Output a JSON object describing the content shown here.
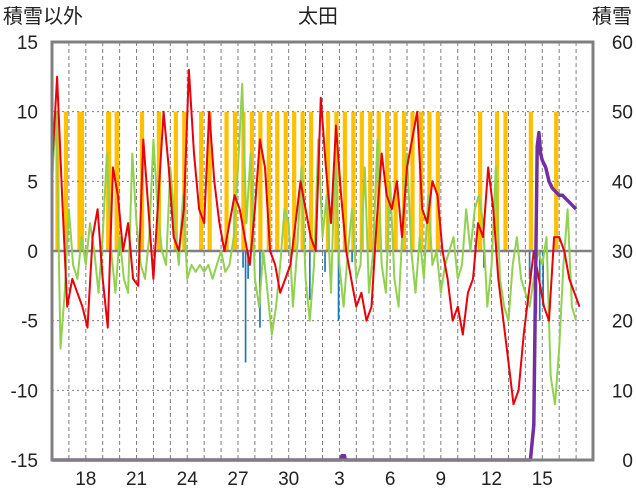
{
  "chart_data": {
    "type": "line",
    "title": "太田",
    "y_left_label": "積雪以外",
    "y_right_label": "積雪",
    "y_left_range": [
      -15,
      15
    ],
    "y_left_ticks": [
      15,
      10,
      5,
      0,
      -5,
      -10,
      -15
    ],
    "y_right_range": [
      0,
      60
    ],
    "y_right_ticks": [
      60,
      50,
      40,
      30,
      20,
      10,
      0
    ],
    "x_range": [
      0,
      32
    ],
    "x_ticks": [
      {
        "x": 2,
        "label": "18"
      },
      {
        "x": 5,
        "label": "21"
      },
      {
        "x": 8,
        "label": "24"
      },
      {
        "x": 11,
        "label": "27"
      },
      {
        "x": 14,
        "label": "30"
      },
      {
        "x": 17,
        "label": "3"
      },
      {
        "x": 20,
        "label": "6"
      },
      {
        "x": 23,
        "label": "9"
      },
      {
        "x": 26,
        "label": "12"
      },
      {
        "x": 29,
        "label": "15"
      }
    ],
    "grid": true,
    "colors": {
      "frame": "#808080",
      "grid": "#7f7f7f",
      "zero_line": "#808080",
      "sunshine": "#FFC000",
      "precipitation": "#1F77B4",
      "temperature": "#E8000B",
      "humidity": "#92D050",
      "snow_depth": "#7030A0"
    },
    "series": [
      {
        "role": "sunshine",
        "kind": "bar",
        "bars": [
          {
            "x": 0.2,
            "x2": 0.45,
            "y": 10
          },
          {
            "x": 0.7,
            "x2": 0.95,
            "y": 10
          },
          {
            "x": 1.5,
            "x2": 1.9,
            "y": 10
          },
          {
            "x": 3.2,
            "x2": 3.5,
            "y": 10
          },
          {
            "x": 3.7,
            "x2": 4.0,
            "y": 10
          },
          {
            "x": 5.2,
            "x2": 5.45,
            "y": 10
          },
          {
            "x": 6.2,
            "x2": 6.45,
            "y": 10
          },
          {
            "x": 7.2,
            "x2": 7.45,
            "y": 10
          },
          {
            "x": 7.7,
            "x2": 7.95,
            "y": 10
          },
          {
            "x": 8.7,
            "x2": 8.95,
            "y": 10
          },
          {
            "x": 9.2,
            "x2": 9.45,
            "y": 10
          },
          {
            "x": 10.2,
            "x2": 10.45,
            "y": 10
          },
          {
            "x": 10.7,
            "x2": 10.95,
            "y": 10
          },
          {
            "x": 11.2,
            "x2": 11.45,
            "y": 10
          },
          {
            "x": 11.7,
            "x2": 11.95,
            "y": 10
          },
          {
            "x": 12.2,
            "x2": 12.45,
            "y": 10
          },
          {
            "x": 12.7,
            "x2": 12.95,
            "y": 10
          },
          {
            "x": 13.2,
            "x2": 13.45,
            "y": 10
          },
          {
            "x": 13.7,
            "x2": 13.95,
            "y": 10
          },
          {
            "x": 14.2,
            "x2": 14.45,
            "y": 10
          },
          {
            "x": 14.7,
            "x2": 14.95,
            "y": 10
          },
          {
            "x": 15.2,
            "x2": 15.45,
            "y": 10
          },
          {
            "x": 16.2,
            "x2": 16.45,
            "y": 10
          },
          {
            "x": 16.7,
            "x2": 16.95,
            "y": 10
          },
          {
            "x": 17.2,
            "x2": 17.45,
            "y": 10
          },
          {
            "x": 17.7,
            "x2": 17.95,
            "y": 10
          },
          {
            "x": 18.2,
            "x2": 18.45,
            "y": 10
          },
          {
            "x": 18.7,
            "x2": 18.95,
            "y": 10
          },
          {
            "x": 19.2,
            "x2": 19.45,
            "y": 10
          },
          {
            "x": 19.7,
            "x2": 19.95,
            "y": 10
          },
          {
            "x": 20.2,
            "x2": 20.45,
            "y": 10
          },
          {
            "x": 20.7,
            "x2": 20.95,
            "y": 10
          },
          {
            "x": 21.2,
            "x2": 21.45,
            "y": 10
          },
          {
            "x": 21.7,
            "x2": 21.95,
            "y": 10
          },
          {
            "x": 22.2,
            "x2": 22.45,
            "y": 10
          },
          {
            "x": 22.7,
            "x2": 22.95,
            "y": 10
          },
          {
            "x": 25.2,
            "x2": 25.45,
            "y": 10
          },
          {
            "x": 26.2,
            "x2": 26.45,
            "y": 10
          },
          {
            "x": 26.7,
            "x2": 26.95,
            "y": 10
          },
          {
            "x": 28.2,
            "x2": 28.45,
            "y": 10
          },
          {
            "x": 29.7,
            "x2": 29.95,
            "y": 10
          }
        ]
      },
      {
        "role": "precipitation",
        "kind": "bar",
        "bars": [
          {
            "x": 11.25,
            "x2": 11.35,
            "y": -1.2
          },
          {
            "x": 11.4,
            "x2": 11.5,
            "y": -8.0
          },
          {
            "x": 11.55,
            "x2": 11.65,
            "y": -2.0
          },
          {
            "x": 12.25,
            "x2": 12.35,
            "y": -5.5
          },
          {
            "x": 12.4,
            "x2": 12.5,
            "y": -1.0
          },
          {
            "x": 15.2,
            "x2": 15.3,
            "y": -3.5
          },
          {
            "x": 16.1,
            "x2": 16.2,
            "y": -1.5
          },
          {
            "x": 16.9,
            "x2": 17.0,
            "y": -5.0
          },
          {
            "x": 17.7,
            "x2": 17.8,
            "y": -0.8
          },
          {
            "x": 25.5,
            "x2": 25.6,
            "y": -1.2
          },
          {
            "x": 28.2,
            "x2": 28.3,
            "y": -2.0
          },
          {
            "x": 28.6,
            "x2": 28.7,
            "y": -4.5
          },
          {
            "x": 28.8,
            "x2": 28.9,
            "y": -5.0
          },
          {
            "x": 29.0,
            "x2": 29.1,
            "y": -4.0
          }
        ]
      },
      {
        "role": "temperature",
        "kind": "line",
        "x": [
          0,
          0.3,
          0.6,
          0.9,
          1.2,
          1.5,
          1.8,
          2.1,
          2.4,
          2.7,
          3.0,
          3.3,
          3.6,
          3.9,
          4.2,
          4.5,
          4.8,
          5.1,
          5.4,
          5.7,
          6.0,
          6.3,
          6.6,
          6.9,
          7.2,
          7.5,
          7.8,
          8.1,
          8.4,
          8.7,
          9.0,
          9.3,
          9.6,
          9.9,
          10.2,
          10.5,
          10.8,
          11.1,
          11.4,
          11.7,
          12.0,
          12.3,
          12.6,
          12.9,
          13.2,
          13.5,
          13.8,
          14.1,
          14.4,
          14.7,
          15.0,
          15.3,
          15.6,
          15.9,
          16.2,
          16.5,
          16.8,
          17.1,
          17.4,
          17.7,
          18.0,
          18.3,
          18.6,
          18.9,
          19.2,
          19.5,
          19.8,
          20.1,
          20.4,
          20.7,
          21.0,
          21.3,
          21.6,
          21.9,
          22.2,
          22.5,
          22.8,
          23.1,
          23.4,
          23.7,
          24.0,
          24.3,
          24.6,
          24.9,
          25.2,
          25.5,
          25.8,
          26.1,
          26.4,
          26.7,
          27.0,
          27.3,
          27.6,
          27.9,
          28.2,
          28.5,
          28.8,
          29.1,
          29.4,
          29.7,
          30.0,
          30.3,
          30.6,
          30.9,
          31.2
        ],
        "values": [
          6,
          12.5,
          4,
          -4,
          -2,
          -3,
          -4,
          -5.5,
          1,
          3,
          -2,
          -5.5,
          6,
          4,
          0,
          2,
          -2,
          -2.5,
          8,
          3,
          -2,
          4,
          10,
          6,
          1,
          0,
          3,
          13,
          7,
          3,
          2,
          10,
          5,
          2,
          0,
          2,
          4,
          3,
          1,
          -1,
          3,
          8,
          6,
          0,
          -1,
          -3,
          -2,
          -1,
          2,
          5,
          3,
          1,
          0,
          11,
          6,
          2,
          9,
          4,
          0,
          -2,
          -4,
          -3,
          -5,
          -4,
          2,
          7,
          4,
          3,
          5,
          1,
          6,
          8,
          10,
          3,
          2,
          5,
          4,
          0,
          -2,
          -5,
          -4,
          -6,
          -3,
          -2,
          2,
          1,
          6,
          3,
          -2,
          -5,
          -8,
          -11,
          -10,
          -6,
          -3,
          0,
          -2,
          -4,
          -5,
          1,
          1,
          0,
          -2,
          -3,
          -4
        ]
      },
      {
        "role": "humidity",
        "kind": "line",
        "x": [
          0,
          0.25,
          0.5,
          0.75,
          1.0,
          1.25,
          1.5,
          1.75,
          2.0,
          2.25,
          2.5,
          2.75,
          3.0,
          3.25,
          3.5,
          3.75,
          4.0,
          4.25,
          4.5,
          4.75,
          5.0,
          5.25,
          5.5,
          5.75,
          6.0,
          6.25,
          6.5,
          6.75,
          7.0,
          7.25,
          7.5,
          7.75,
          8.0,
          8.25,
          8.5,
          8.75,
          9.0,
          9.25,
          9.5,
          9.75,
          10.0,
          10.25,
          10.5,
          10.75,
          11.0,
          11.25,
          11.5,
          11.75,
          12.0,
          12.25,
          12.5,
          12.75,
          13.0,
          13.25,
          13.5,
          13.75,
          14.0,
          14.25,
          14.5,
          14.75,
          15.0,
          15.25,
          15.5,
          15.75,
          16.0,
          16.25,
          16.5,
          16.75,
          17.0,
          17.25,
          17.5,
          17.75,
          18.0,
          18.25,
          18.5,
          18.75,
          19.0,
          19.25,
          19.5,
          19.75,
          20.0,
          20.25,
          20.5,
          20.75,
          21.0,
          21.25,
          21.5,
          21.75,
          22.0,
          22.25,
          22.5,
          22.75,
          23.0,
          23.25,
          23.5,
          23.75,
          24.0,
          24.25,
          24.5,
          24.75,
          25.0,
          25.25,
          25.5,
          25.75,
          26.0,
          26.25,
          26.5,
          26.75,
          27.0,
          27.25,
          27.5,
          27.75,
          28.0,
          28.25,
          28.5,
          28.75,
          29.0,
          29.25,
          29.5,
          29.75,
          30.0,
          30.25,
          30.5,
          30.75,
          31.0
        ],
        "values": [
          5,
          10,
          -7,
          -3,
          3,
          -1,
          -2,
          1,
          -1,
          2,
          0,
          -3,
          1,
          7,
          0,
          -3,
          1,
          -2,
          -3,
          7,
          2,
          -1,
          -2,
          1,
          8,
          3,
          0,
          -1,
          6,
          2,
          -1,
          4,
          -2,
          -1,
          -1.5,
          -1,
          -1.5,
          -1,
          -2,
          -1,
          0,
          -1.5,
          -1,
          1,
          6,
          12,
          2,
          7,
          -2,
          -4,
          0,
          -3,
          -6,
          -4,
          -1,
          3,
          2,
          -4,
          0,
          6,
          -2,
          -5,
          -1,
          8,
          1,
          4,
          -3,
          7,
          -1,
          -4,
          0,
          3,
          -2,
          -1,
          6,
          -3,
          0,
          8,
          -1,
          -3,
          5,
          -2,
          -4,
          2,
          7,
          0,
          -3,
          1,
          -2,
          4,
          -1,
          0,
          -3,
          -1,
          0,
          1,
          -2,
          -1,
          3,
          0,
          3,
          4,
          2,
          -4,
          -1,
          6,
          -2,
          -4,
          -5,
          -1,
          1,
          -2,
          -3,
          -4,
          -2,
          0,
          -1,
          1,
          -9,
          -11,
          -7,
          -1,
          3,
          -4,
          -5
        ]
      },
      {
        "role": "snow_depth",
        "kind": "line",
        "axis": "right",
        "x": [
          0,
          17.1,
          17.15,
          17.3,
          17.35,
          28.3,
          28.5,
          28.6,
          28.7,
          28.8,
          28.9,
          29.0,
          29.2,
          29.4,
          29.6,
          29.8,
          30.0,
          30.2,
          30.4,
          30.6,
          30.8,
          31.0
        ],
        "values": [
          0,
          0,
          0.6,
          0.6,
          0,
          0,
          5,
          25,
          45,
          47,
          44,
          43,
          42,
          40,
          39,
          38.5,
          38,
          38,
          37.5,
          37,
          36.5,
          36
        ]
      }
    ]
  }
}
